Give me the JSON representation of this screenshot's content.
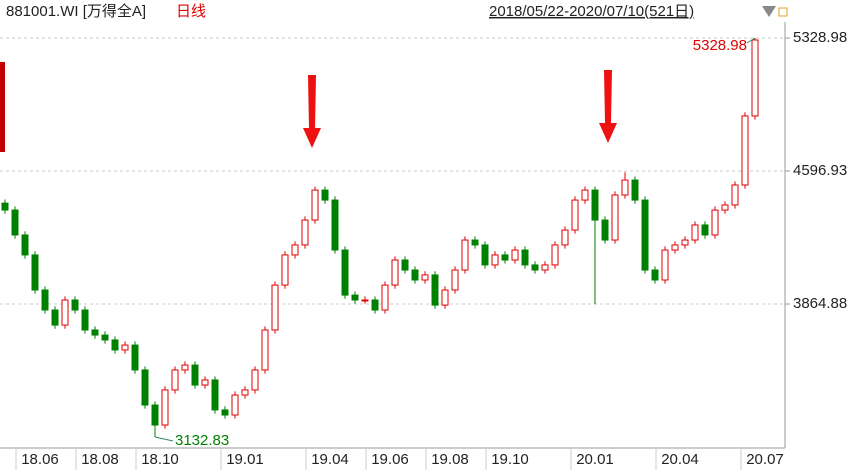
{
  "chart_data": {
    "type": "candlestick",
    "code": "881001.WI [万得全A]",
    "period": "日线",
    "range": "2018/05/22-2020/07/10(521日)",
    "up_color": "#e00000",
    "down_color": "#008000",
    "ohlc": [
      [
        4420,
        4440,
        4362,
        4382
      ],
      [
        4382,
        4402,
        4225,
        4245
      ],
      [
        4245,
        4265,
        4115,
        4135
      ],
      [
        4135,
        4155,
        3922,
        3942
      ],
      [
        3942,
        3962,
        3812,
        3832
      ],
      [
        3832,
        3852,
        3729,
        3749
      ],
      [
        3749,
        3907,
        3729,
        3887
      ],
      [
        3887,
        3907,
        3812,
        3832
      ],
      [
        3832,
        3852,
        3702,
        3722
      ],
      [
        3722,
        3742,
        3674,
        3694
      ],
      [
        3694,
        3714,
        3647,
        3667
      ],
      [
        3667,
        3687,
        3592,
        3612
      ],
      [
        3612,
        3659,
        3592,
        3639
      ],
      [
        3639,
        3659,
        3482,
        3502
      ],
      [
        3502,
        3522,
        3289,
        3309
      ],
      [
        3309,
        3329,
        3132.83,
        3199
      ],
      [
        3199,
        3412,
        3179,
        3392
      ],
      [
        3392,
        3522,
        3372,
        3502
      ],
      [
        3502,
        3549,
        3482,
        3529
      ],
      [
        3529,
        3549,
        3399,
        3419
      ],
      [
        3419,
        3467,
        3399,
        3447
      ],
      [
        3447,
        3467,
        3262,
        3282
      ],
      [
        3282,
        3302,
        3234,
        3254
      ],
      [
        3254,
        3384,
        3234,
        3364
      ],
      [
        3364,
        3412,
        3344,
        3392
      ],
      [
        3392,
        3522,
        3372,
        3502
      ],
      [
        3502,
        3742,
        3482,
        3722
      ],
      [
        3722,
        3989,
        3702,
        3969
      ],
      [
        3969,
        4155,
        3949,
        4135
      ],
      [
        4135,
        4210,
        4115,
        4190
      ],
      [
        4190,
        4347,
        4170,
        4327
      ],
      [
        4327,
        4512,
        4307,
        4492
      ],
      [
        4492,
        4512,
        4417,
        4437
      ],
      [
        4437,
        4457,
        4142,
        4162
      ],
      [
        4162,
        4182,
        3894,
        3914
      ],
      [
        3914,
        3934,
        3867,
        3887
      ],
      [
        3887,
        3907,
        3867,
        3887
      ],
      [
        3887,
        3907,
        3812,
        3832
      ],
      [
        3832,
        3989,
        3812,
        3969
      ],
      [
        3969,
        4127,
        3949,
        4107
      ],
      [
        4107,
        4127,
        4032,
        4052
      ],
      [
        4052,
        4072,
        3977,
        3997
      ],
      [
        3997,
        4045,
        3977,
        4025
      ],
      [
        4025,
        4045,
        3839,
        3859
      ],
      [
        3859,
        3962,
        3839,
        3942
      ],
      [
        3942,
        4072,
        3922,
        4052
      ],
      [
        4052,
        4237,
        4032,
        4217
      ],
      [
        4217,
        4237,
        4170,
        4190
      ],
      [
        4190,
        4210,
        4060,
        4080
      ],
      [
        4080,
        4155,
        4060,
        4135
      ],
      [
        4135,
        4155,
        4087,
        4107
      ],
      [
        4107,
        4182,
        4087,
        4162
      ],
      [
        4162,
        4182,
        4060,
        4080
      ],
      [
        4080,
        4100,
        4032,
        4052
      ],
      [
        4052,
        4100,
        4032,
        4080
      ],
      [
        4080,
        4210,
        4060,
        4190
      ],
      [
        4190,
        4292,
        4170,
        4272
      ],
      [
        4272,
        4457,
        4252,
        4437
      ],
      [
        4437,
        4512,
        4417,
        4492
      ],
      [
        4492,
        4512,
        3864,
        4327
      ],
      [
        4327,
        4347,
        4197,
        4217
      ],
      [
        4217,
        4485,
        4197,
        4465
      ],
      [
        4465,
        4590,
        4445,
        4547
      ],
      [
        4547,
        4567,
        4417,
        4437
      ],
      [
        4437,
        4457,
        4032,
        4052
      ],
      [
        4052,
        4072,
        3977,
        3997
      ],
      [
        3997,
        4182,
        3977,
        4162
      ],
      [
        4162,
        4210,
        4142,
        4190
      ],
      [
        4190,
        4237,
        4170,
        4217
      ],
      [
        4217,
        4320,
        4197,
        4300
      ],
      [
        4300,
        4320,
        4225,
        4245
      ],
      [
        4245,
        4402,
        4225,
        4382
      ],
      [
        4382,
        4430,
        4362,
        4410
      ],
      [
        4410,
        4540,
        4390,
        4520
      ],
      [
        4520,
        4920,
        4500,
        4900
      ],
      [
        4900,
        5328.98,
        4880,
        5318
      ]
    ],
    "xlim": [
      -0.5,
      78
    ],
    "xticks": [
      {
        "value": 3.5,
        "label": "18.06"
      },
      {
        "value": 9.5,
        "label": "18.08"
      },
      {
        "value": 15.5,
        "label": "18.10"
      },
      {
        "value": 24,
        "label": "19.01"
      },
      {
        "value": 32.5,
        "label": "19.04"
      },
      {
        "value": 38.5,
        "label": "19.06"
      },
      {
        "value": 44.5,
        "label": "19.08"
      },
      {
        "value": 50.5,
        "label": "19.10"
      },
      {
        "value": 59,
        "label": "20.01"
      },
      {
        "value": 67.5,
        "label": "20.04"
      },
      {
        "value": 76,
        "label": "20.07"
      }
    ],
    "ylim": [
      3089,
      5417
    ],
    "yticks": [
      3864.88,
      4596.93,
      5328.98
    ],
    "grid": true
  }
}
